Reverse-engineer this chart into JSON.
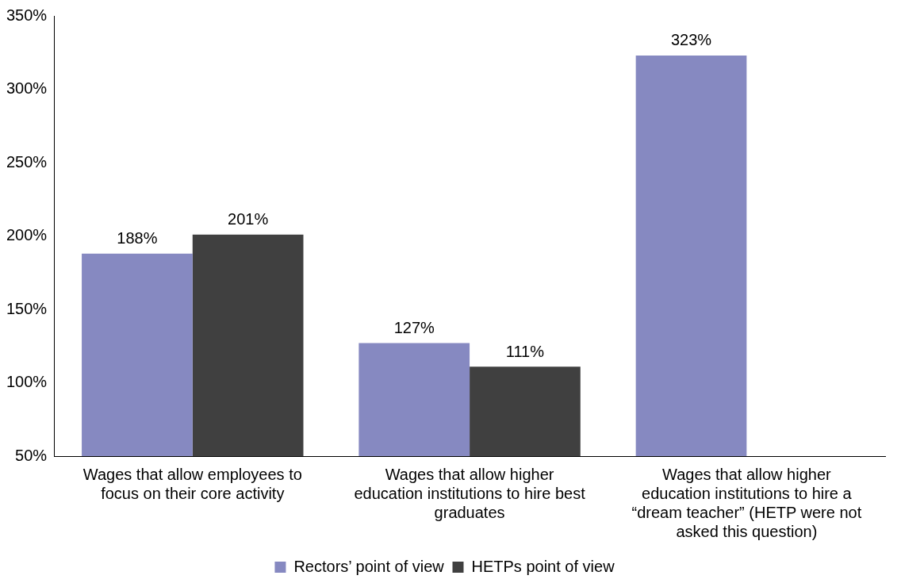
{
  "chart_data": {
    "type": "bar",
    "categories": [
      "Wages that allow employees to focus on their core activity",
      "Wages that allow higher education institutions to hire best graduates",
      "Wages that allow higher education institutions to hire a “dream teacher” (HETP were not asked this question)"
    ],
    "series": [
      {
        "name": "Rectors’ point of view",
        "color": "#8689c1",
        "values": [
          188,
          127,
          323
        ],
        "value_labels": [
          "188%",
          "127%",
          "323%"
        ]
      },
      {
        "name": "HETPs point of view",
        "color": "#404040",
        "values": [
          201,
          111,
          null
        ],
        "value_labels": [
          "201%",
          "111%",
          null
        ]
      }
    ],
    "ylim": [
      50,
      350
    ],
    "yticks": [
      {
        "value": 50,
        "label": "50%"
      },
      {
        "value": 100,
        "label": "100%"
      },
      {
        "value": 150,
        "label": "150%"
      },
      {
        "value": 200,
        "label": "200%"
      },
      {
        "value": 250,
        "label": "250%"
      },
      {
        "value": 300,
        "label": "300%"
      },
      {
        "value": 350,
        "label": "350%"
      }
    ],
    "grid": false,
    "legend": "bottom"
  }
}
